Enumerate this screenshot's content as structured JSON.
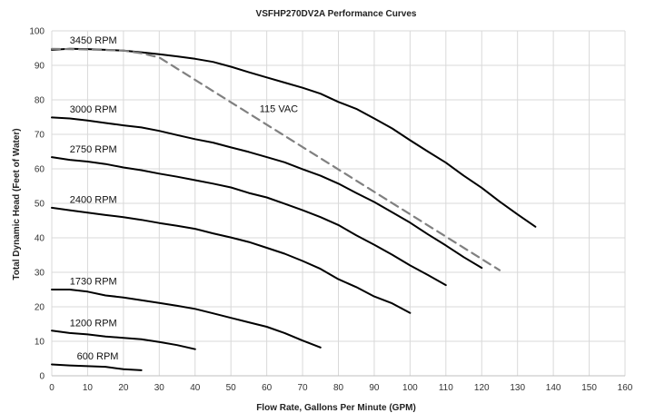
{
  "chart_data": {
    "type": "line",
    "title": "VSFHP270DV2A Performance Curves",
    "xlabel": "Flow Rate, Gallons Per Minute (GPM)",
    "ylabel": "Total Dynamic Head (Feet of Water)",
    "xlim": [
      0,
      160
    ],
    "ylim": [
      0,
      100
    ],
    "xticks": [
      0,
      10,
      20,
      30,
      40,
      50,
      60,
      70,
      80,
      90,
      100,
      110,
      120,
      130,
      140,
      150,
      160
    ],
    "yticks": [
      0,
      10,
      20,
      30,
      40,
      50,
      60,
      70,
      80,
      90,
      100
    ],
    "grid": true,
    "legend": "none",
    "series": [
      {
        "name": "3450 RPM",
        "color": "#000000",
        "dashed": false,
        "points": [
          [
            0,
            94.5
          ],
          [
            5,
            94.8
          ],
          [
            10,
            94.7
          ],
          [
            15,
            94.5
          ],
          [
            20,
            94.3
          ],
          [
            25,
            93.8
          ],
          [
            30,
            93.2
          ],
          [
            35,
            92.6
          ],
          [
            40,
            91.9
          ],
          [
            45,
            91.0
          ],
          [
            50,
            89.6
          ],
          [
            55,
            88.0
          ],
          [
            60,
            86.5
          ],
          [
            65,
            85.0
          ],
          [
            70,
            83.5
          ],
          [
            75,
            81.8
          ],
          [
            80,
            79.4
          ],
          [
            85,
            77.4
          ],
          [
            90,
            74.6
          ],
          [
            95,
            71.7
          ],
          [
            100,
            68.3
          ],
          [
            105,
            65.0
          ],
          [
            110,
            61.8
          ],
          [
            115,
            58.0
          ],
          [
            120,
            54.5
          ],
          [
            125,
            50.5
          ],
          [
            130,
            46.8
          ],
          [
            135,
            43.2
          ]
        ]
      },
      {
        "name": "3000 RPM",
        "color": "#000000",
        "dashed": false,
        "points": [
          [
            0,
            74.9
          ],
          [
            5,
            74.6
          ],
          [
            10,
            74.0
          ],
          [
            15,
            73.3
          ],
          [
            20,
            72.6
          ],
          [
            25,
            72.0
          ],
          [
            30,
            71.0
          ],
          [
            35,
            69.8
          ],
          [
            40,
            68.6
          ],
          [
            45,
            67.6
          ],
          [
            50,
            66.2
          ],
          [
            55,
            64.9
          ],
          [
            60,
            63.4
          ],
          [
            65,
            61.9
          ],
          [
            70,
            59.9
          ],
          [
            75,
            58.0
          ],
          [
            80,
            55.7
          ],
          [
            85,
            53.0
          ],
          [
            90,
            50.4
          ],
          [
            95,
            47.4
          ],
          [
            100,
            44.4
          ],
          [
            105,
            41.0
          ],
          [
            110,
            37.8
          ],
          [
            115,
            34.4
          ],
          [
            120,
            31.3
          ]
        ]
      },
      {
        "name": "2750 RPM",
        "color": "#000000",
        "dashed": false,
        "points": [
          [
            0,
            63.4
          ],
          [
            5,
            62.6
          ],
          [
            10,
            62.1
          ],
          [
            15,
            61.4
          ],
          [
            20,
            60.4
          ],
          [
            25,
            59.6
          ],
          [
            30,
            58.6
          ],
          [
            35,
            57.7
          ],
          [
            40,
            56.7
          ],
          [
            45,
            55.7
          ],
          [
            50,
            54.6
          ],
          [
            55,
            53.0
          ],
          [
            60,
            51.7
          ],
          [
            65,
            49.9
          ],
          [
            70,
            48.0
          ],
          [
            75,
            46.0
          ],
          [
            80,
            43.7
          ],
          [
            85,
            40.7
          ],
          [
            90,
            38.0
          ],
          [
            95,
            35.1
          ],
          [
            100,
            32.0
          ],
          [
            105,
            29.2
          ],
          [
            110,
            26.3
          ]
        ]
      },
      {
        "name": "2400 RPM",
        "color": "#000000",
        "dashed": false,
        "points": [
          [
            0,
            48.7
          ],
          [
            5,
            48.0
          ],
          [
            10,
            47.3
          ],
          [
            15,
            46.6
          ],
          [
            20,
            46.0
          ],
          [
            25,
            45.2
          ],
          [
            30,
            44.3
          ],
          [
            35,
            43.5
          ],
          [
            40,
            42.6
          ],
          [
            45,
            41.3
          ],
          [
            50,
            40.1
          ],
          [
            55,
            38.8
          ],
          [
            60,
            37.1
          ],
          [
            65,
            35.4
          ],
          [
            70,
            33.3
          ],
          [
            75,
            31.0
          ],
          [
            80,
            28.0
          ],
          [
            85,
            25.7
          ],
          [
            90,
            23.0
          ],
          [
            95,
            21.0
          ],
          [
            100,
            18.2
          ]
        ]
      },
      {
        "name": "1730 RPM",
        "color": "#000000",
        "dashed": false,
        "points": [
          [
            0,
            25.0
          ],
          [
            5,
            25.0
          ],
          [
            10,
            24.4
          ],
          [
            15,
            23.3
          ],
          [
            20,
            22.7
          ],
          [
            25,
            21.9
          ],
          [
            30,
            21.1
          ],
          [
            35,
            20.3
          ],
          [
            40,
            19.4
          ],
          [
            45,
            18.1
          ],
          [
            50,
            16.8
          ],
          [
            55,
            15.5
          ],
          [
            60,
            14.2
          ],
          [
            65,
            12.4
          ],
          [
            70,
            10.2
          ],
          [
            75,
            8.2
          ]
        ]
      },
      {
        "name": "1200 RPM",
        "color": "#000000",
        "dashed": false,
        "points": [
          [
            0,
            13.1
          ],
          [
            5,
            12.4
          ],
          [
            10,
            12.0
          ],
          [
            15,
            11.4
          ],
          [
            20,
            11.0
          ],
          [
            25,
            10.6
          ],
          [
            30,
            9.8
          ],
          [
            35,
            8.9
          ],
          [
            40,
            7.7
          ]
        ]
      },
      {
        "name": "600 RPM",
        "color": "#000000",
        "dashed": false,
        "points": [
          [
            0,
            3.3
          ],
          [
            5,
            3.0
          ],
          [
            10,
            2.8
          ],
          [
            15,
            2.6
          ],
          [
            20,
            1.9
          ],
          [
            25,
            1.6
          ]
        ]
      },
      {
        "name": "115 VAC",
        "color": "#808080",
        "dashed": true,
        "points": [
          [
            0,
            94.8
          ],
          [
            10,
            94.6
          ],
          [
            20,
            94.3
          ],
          [
            25,
            93.5
          ],
          [
            30,
            92.3
          ],
          [
            125,
            30.6
          ]
        ]
      }
    ],
    "annotations": [
      {
        "text": "3450 RPM",
        "x": 5,
        "y": 96.3
      },
      {
        "text": "3000 RPM",
        "x": 5,
        "y": 76.3
      },
      {
        "text": "2750 RPM",
        "x": 5,
        "y": 64.8
      },
      {
        "text": "2400 RPM",
        "x": 5,
        "y": 50.1
      },
      {
        "text": "1730 RPM",
        "x": 5,
        "y": 26.5
      },
      {
        "text": "1200 RPM",
        "x": 5,
        "y": 14.4
      },
      {
        "text": "600 RPM",
        "x": 7,
        "y": 4.7
      },
      {
        "text": "115 VAC",
        "x": 58,
        "y": 76.5
      }
    ]
  }
}
